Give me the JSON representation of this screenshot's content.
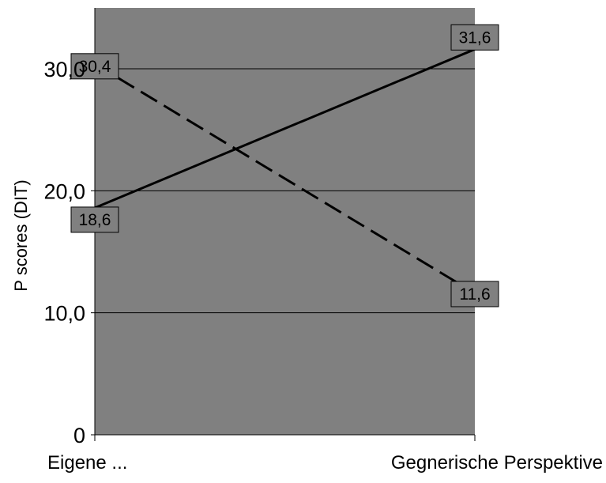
{
  "chart_data": {
    "type": "line",
    "title": "",
    "xlabel": "",
    "ylabel": "P scores (DIT)",
    "ylim": [
      0,
      35
    ],
    "y_ticks": [
      {
        "value": 0,
        "label": "0"
      },
      {
        "value": 10,
        "label": "10,0"
      },
      {
        "value": 20,
        "label": "20,0"
      },
      {
        "value": 30,
        "label": "30,0"
      }
    ],
    "categories": [
      "Eigene ...",
      "Gegnerische Perspektive"
    ],
    "grid": true,
    "legend": "none",
    "series": [
      {
        "values": [
          18.6,
          31.6
        ],
        "value_labels": [
          "18,6",
          "31,6"
        ],
        "line_style": "solid",
        "color": "#000000"
      },
      {
        "values": [
          30.4,
          11.6
        ],
        "value_labels": [
          "30,4",
          "11,6"
        ],
        "line_style": "dashed",
        "color": "#000000"
      }
    ],
    "colors": {
      "plot_background": "#808080",
      "label_box": "#808080",
      "gridline": "#000000",
      "page_background": "#ffffff"
    }
  }
}
